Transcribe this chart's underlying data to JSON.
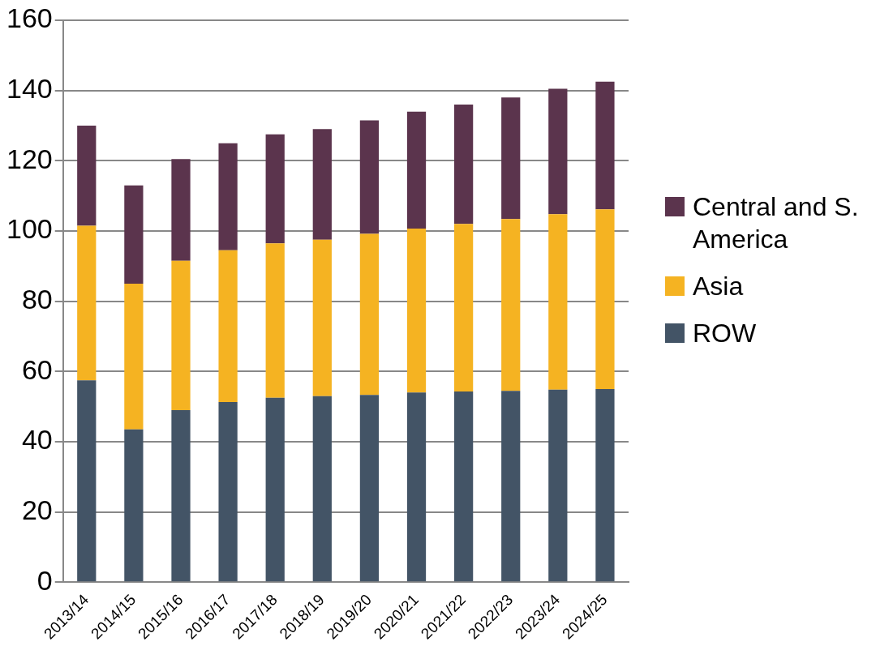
{
  "chart_data": {
    "type": "bar",
    "stacked": true,
    "categories": [
      "2013/14",
      "2014/15",
      "2015/16",
      "2016/17",
      "2017/18",
      "2018/19",
      "2019/20",
      "2020/21",
      "2021/22",
      "2022/23",
      "2023/24",
      "2024/25"
    ],
    "series": [
      {
        "name": "ROW",
        "color": "#435466",
        "values": [
          57.5,
          43.5,
          49,
          51.3,
          52.5,
          53,
          53.3,
          54,
          54.3,
          54.5,
          54.8,
          55
        ]
      },
      {
        "name": "Asia",
        "color": "#f5b322",
        "values": [
          44,
          41.5,
          42.5,
          43.2,
          44,
          44.5,
          45.9,
          46.7,
          47.7,
          48.9,
          50,
          51.2
        ]
      },
      {
        "name": "Central and S. America",
        "color": "#5b344d",
        "values": [
          28.5,
          28,
          29,
          30.5,
          31,
          31.5,
          32.3,
          33.3,
          34,
          34.6,
          35.7,
          36.3
        ]
      }
    ],
    "ylim": [
      0,
      160
    ],
    "yticks": [
      0,
      20,
      40,
      60,
      80,
      100,
      120,
      140,
      160
    ],
    "grid": "y",
    "legend": "right"
  }
}
